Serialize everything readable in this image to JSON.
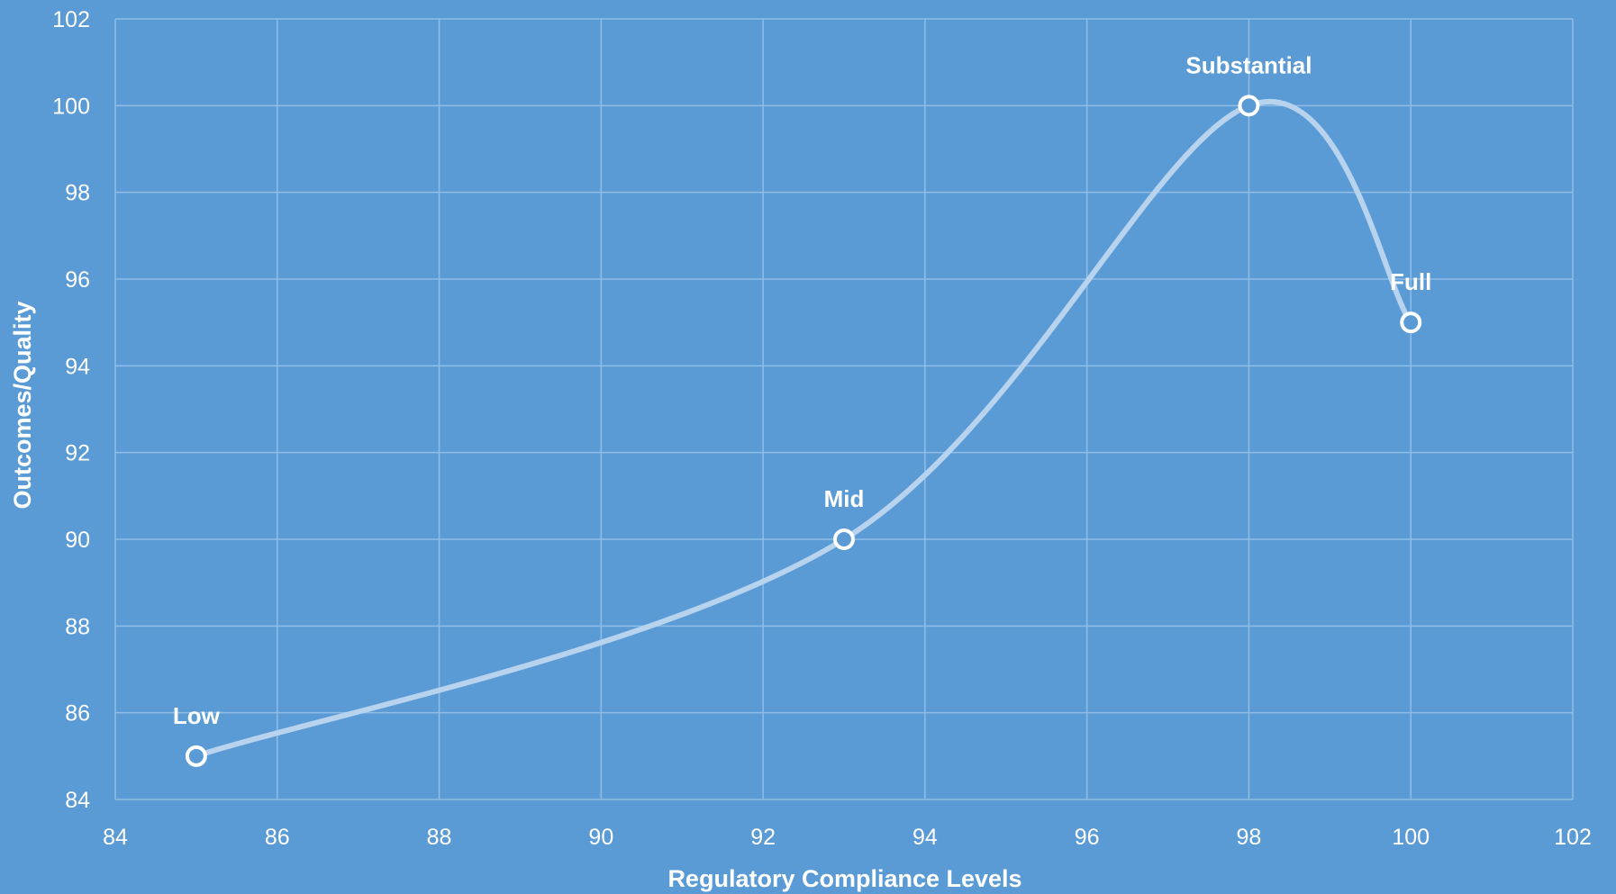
{
  "chart_data": {
    "type": "scatter",
    "title": "",
    "xlabel": "Regulatory Compliance Levels",
    "ylabel": "Outcomes/Quality",
    "xlim": [
      84,
      102
    ],
    "ylim": [
      84,
      102
    ],
    "x_ticks": [
      84,
      86,
      88,
      90,
      92,
      94,
      96,
      98,
      100,
      102
    ],
    "y_ticks": [
      84,
      86,
      88,
      90,
      92,
      94,
      96,
      98,
      100,
      102
    ],
    "grid": true,
    "smoothed": true,
    "series": [
      {
        "points": [
          {
            "x": 85,
            "y": 85,
            "label": "Low"
          },
          {
            "x": 93,
            "y": 90,
            "label": "Mid"
          },
          {
            "x": 98,
            "y": 100,
            "label": "Substantial"
          },
          {
            "x": 100,
            "y": 95,
            "label": "Full"
          }
        ]
      }
    ],
    "colors": {
      "background": "#5b9bd5",
      "gridline": "#8fbde6",
      "line": "#b8d3ee",
      "marker_edge": "#ffffff",
      "text": "#ffffff"
    }
  }
}
